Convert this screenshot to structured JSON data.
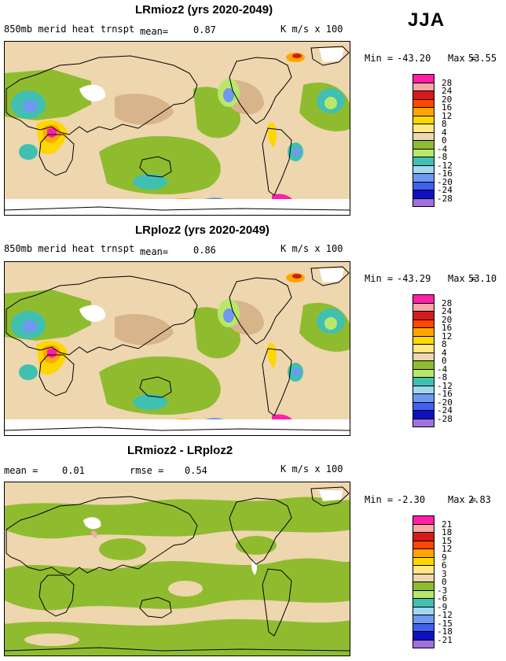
{
  "season": "JJA",
  "panels": [
    {
      "title": "LRmioz2 (yrs 2020-2049)",
      "left_label": "850mb merid heat trnspt",
      "mean_label": "mean=",
      "mean_value": "0.87",
      "units": "K m/s x 100",
      "min_label": "Min =",
      "min_value": "-43.20",
      "max_label": "Max =",
      "max_value": "53.55"
    },
    {
      "title": "LRploz2 (yrs 2020-2049)",
      "left_label": "850mb merid heat trnspt",
      "mean_label": "mean=",
      "mean_value": "0.86",
      "units": "K m/s x 100",
      "min_label": "Min =",
      "min_value": "-43.29",
      "max_label": "Max =",
      "max_value": "53.10"
    },
    {
      "title": "LRmioz2 - LRploz2",
      "mean_label": "mean =",
      "mean_value": "0.01",
      "rmse_label": "rmse =",
      "rmse_value": "0.54",
      "units": "K m/s x 100",
      "min_label": "Min =",
      "min_value": "-2.30",
      "max_label": "Max =",
      "max_value": "2.83"
    }
  ],
  "chart_data": [
    {
      "type": "heatmap",
      "title": "LRmioz2 (yrs 2020-2049)",
      "variable": "850mb merid heat trnspt",
      "units": "K m/s x 100",
      "mean": 0.87,
      "min": -43.2,
      "max": 53.55,
      "colorbar_levels": [
        28,
        24,
        20,
        16,
        12,
        8,
        4,
        0,
        -4,
        -8,
        -12,
        -16,
        -20,
        -24,
        -28
      ],
      "colorbar_colors": [
        "#ff1fa8",
        "#f6a7a7",
        "#d7191c",
        "#ff4500",
        "#ffa500",
        "#ffd700",
        "#ffe980",
        "#eed6ae",
        "#8fbc2f",
        "#b8e86b",
        "#40c0b0",
        "#a0d8f0",
        "#6f98f0",
        "#4060f0",
        "#1010c0",
        "#a070e0"
      ]
    },
    {
      "type": "heatmap",
      "title": "LRploz2 (yrs 2020-2049)",
      "variable": "850mb merid heat trnspt",
      "units": "K m/s x 100",
      "mean": 0.86,
      "min": -43.29,
      "max": 53.1,
      "colorbar_levels": [
        28,
        24,
        20,
        16,
        12,
        8,
        4,
        0,
        -4,
        -8,
        -12,
        -16,
        -20,
        -24,
        -28
      ],
      "colorbar_colors": [
        "#ff1fa8",
        "#f6a7a7",
        "#d7191c",
        "#ff4500",
        "#ffa500",
        "#ffd700",
        "#ffe980",
        "#eed6ae",
        "#8fbc2f",
        "#b8e86b",
        "#40c0b0",
        "#a0d8f0",
        "#6f98f0",
        "#4060f0",
        "#1010c0",
        "#a070e0"
      ]
    },
    {
      "type": "heatmap",
      "title": "LRmioz2 - LRploz2",
      "units": "K m/s x 100",
      "mean": 0.01,
      "rmse": 0.54,
      "min": -2.3,
      "max": 2.83,
      "colorbar_levels": [
        21,
        18,
        15,
        12,
        9,
        6,
        3,
        0,
        -3,
        -6,
        -9,
        -12,
        -15,
        -18,
        -21
      ],
      "colorbar_colors": [
        "#ff1fa8",
        "#f6a7a7",
        "#d7191c",
        "#ff4500",
        "#ffa500",
        "#ffd700",
        "#ffe980",
        "#eed6ae",
        "#8fbc2f",
        "#b8e86b",
        "#40c0b0",
        "#a0d8f0",
        "#6f98f0",
        "#4060f0",
        "#1010c0",
        "#a070e0"
      ]
    }
  ]
}
